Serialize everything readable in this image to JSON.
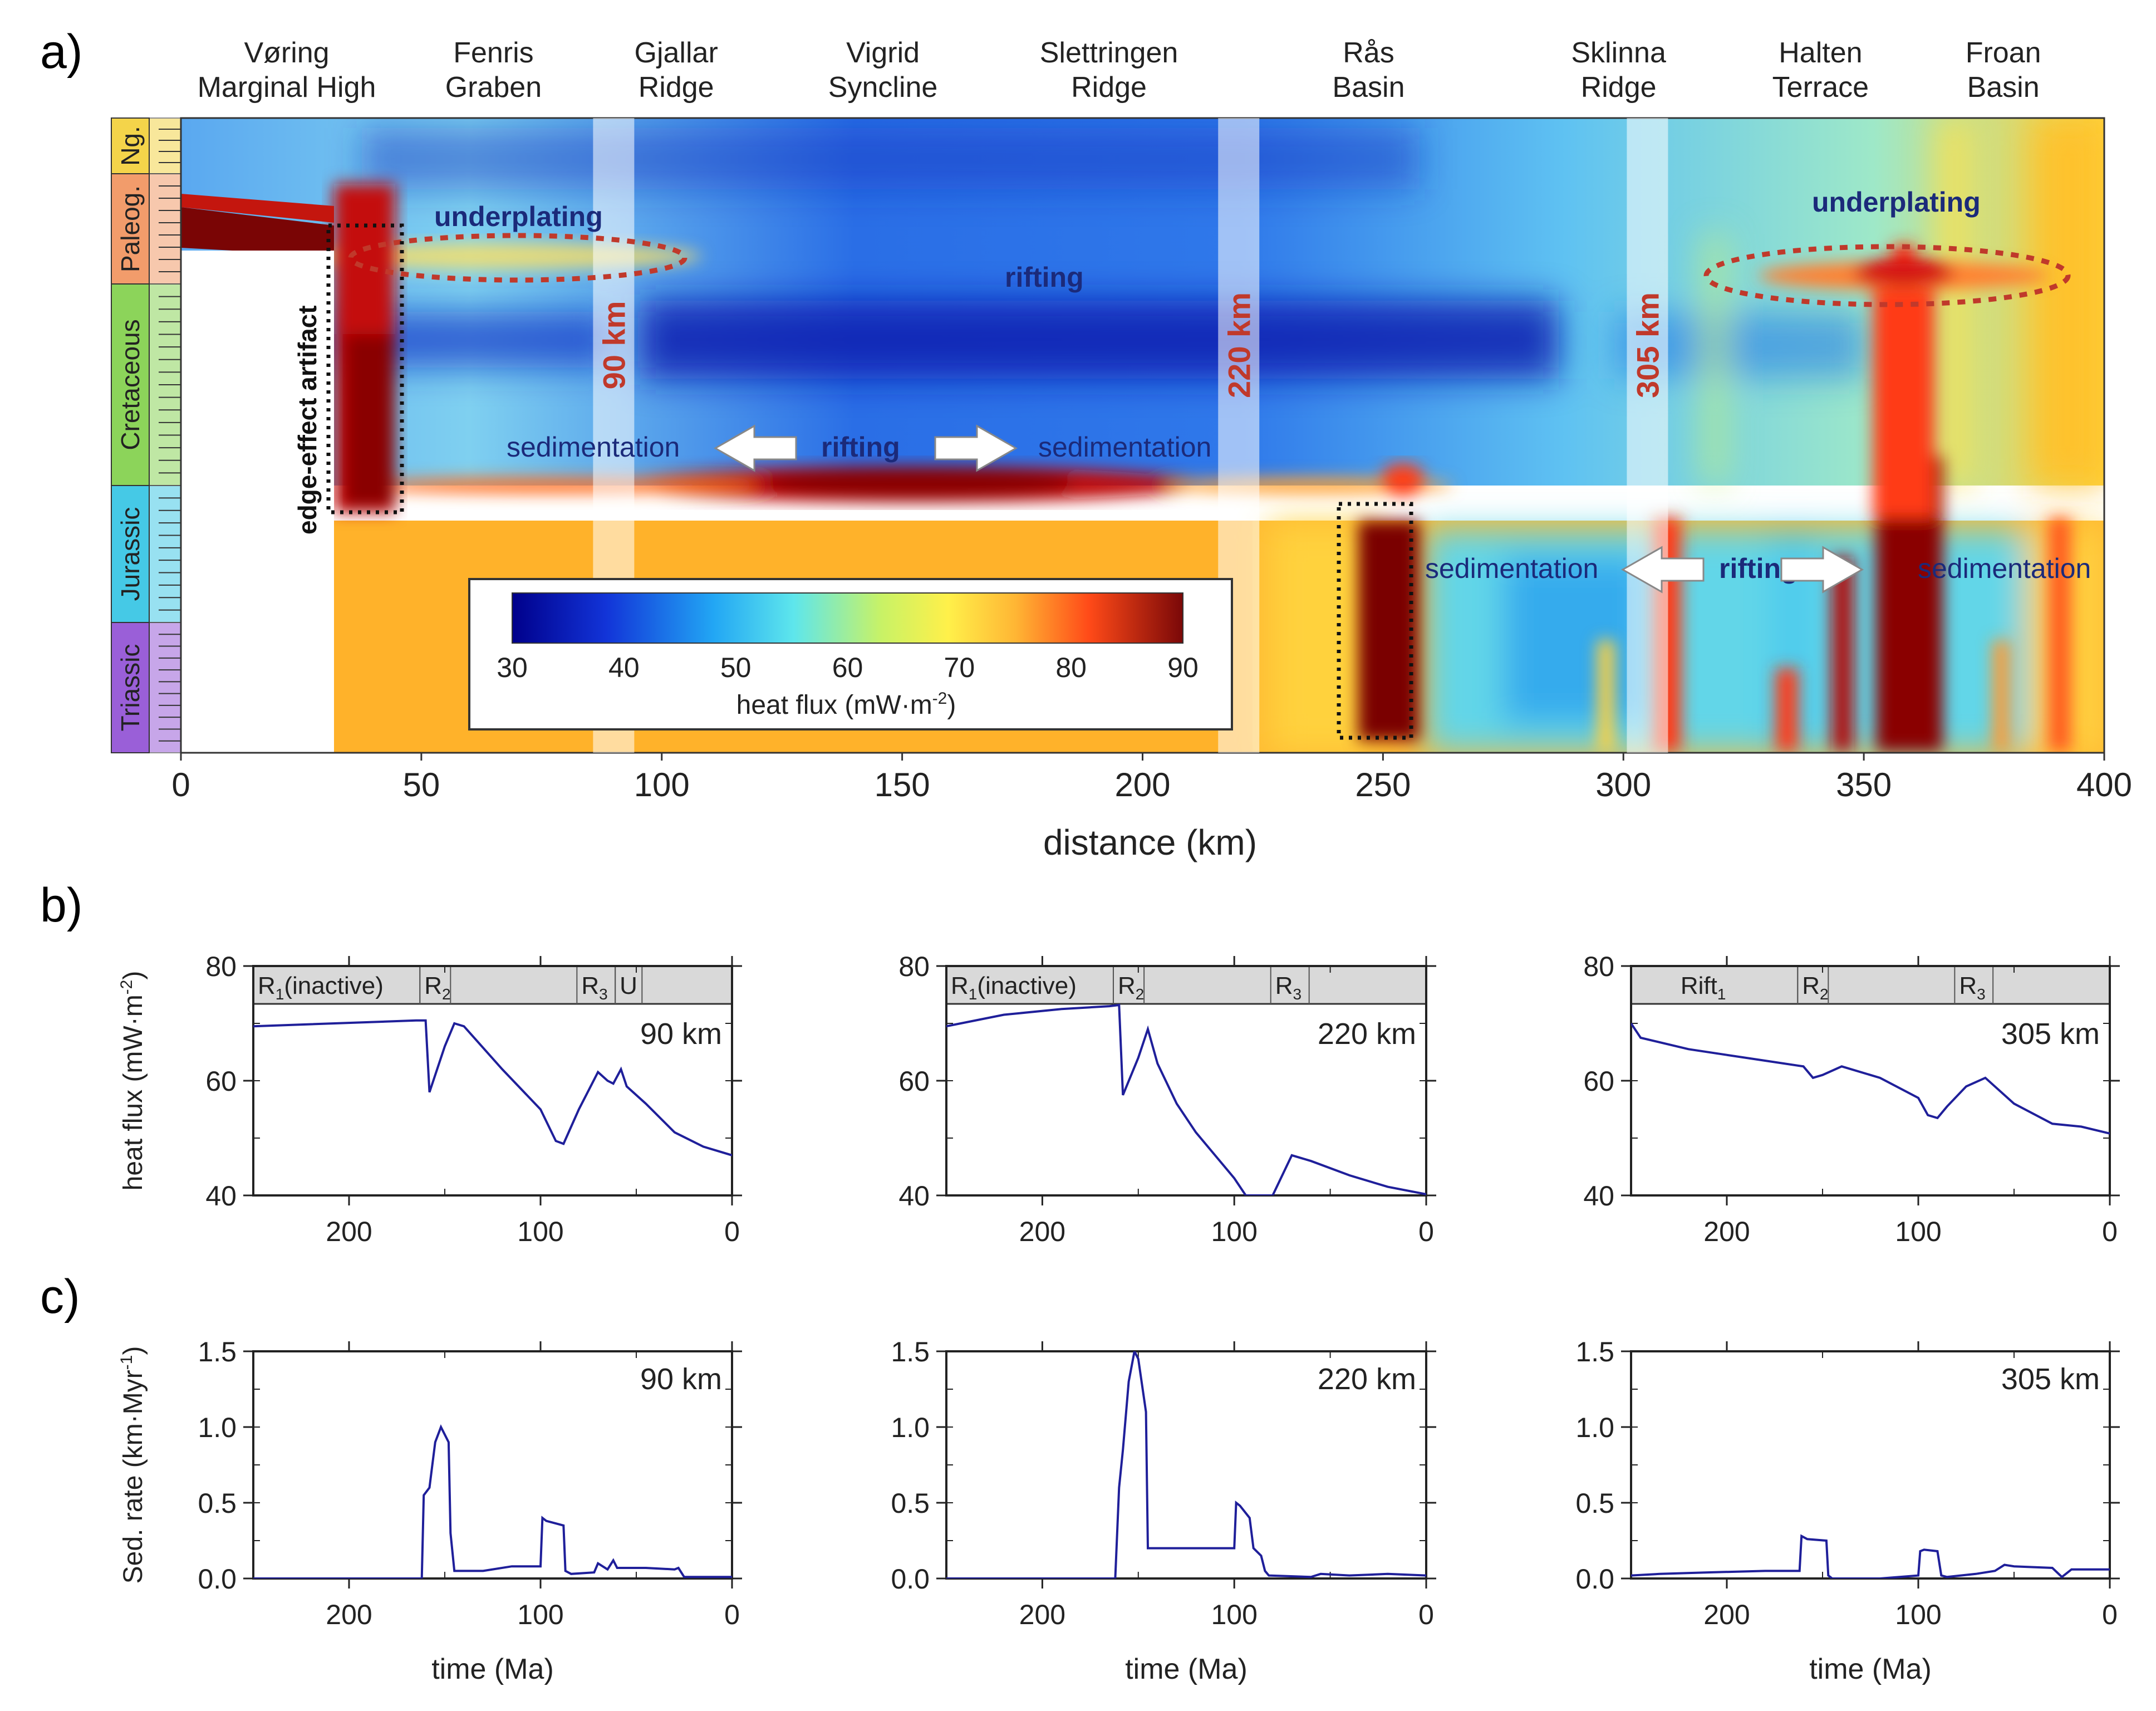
{
  "panel_labels": {
    "a": "a)",
    "b": "b)",
    "c": "c)"
  },
  "colors": {
    "line": "#1f1f9a",
    "ellipse": "#c0392b",
    "km_label": "#c0392b",
    "bar_fill": "#d9d9d9",
    "ng": "#f4d44a",
    "paleog": "#f29c6b",
    "cretaceous": "#8cd45a",
    "jurassic": "#45c9e6",
    "triassic": "#9a5fd8"
  },
  "chart_data": [
    {
      "id": "a",
      "type": "heatmap",
      "xlabel": "distance (km)",
      "xlim": [
        0,
        400
      ],
      "xticks": [
        0,
        50,
        100,
        150,
        200,
        250,
        300,
        350,
        400
      ],
      "time_scale": [
        {
          "label": "Ng.",
          "color": "#f4d44a"
        },
        {
          "label": "Paleog.",
          "color": "#f29c6b"
        },
        {
          "label": "Cretaceous",
          "color": "#8cd45a"
        },
        {
          "label": "Jurassic",
          "color": "#45c9e6"
        },
        {
          "label": "Triassic",
          "color": "#9a5fd8"
        }
      ],
      "regions": [
        {
          "x": 22,
          "lines": [
            "Vøring",
            "Marginal High"
          ]
        },
        {
          "x": 65,
          "lines": [
            "Fenris",
            "Graben"
          ]
        },
        {
          "x": 103,
          "lines": [
            "Gjallar",
            "Ridge"
          ]
        },
        {
          "x": 146,
          "lines": [
            "Vigrid",
            "Syncline"
          ]
        },
        {
          "x": 193,
          "lines": [
            "Slettringen",
            "Ridge"
          ]
        },
        {
          "x": 247,
          "lines": [
            "Rås",
            "Basin"
          ]
        },
        {
          "x": 299,
          "lines": [
            "Sklinna",
            "Ridge"
          ]
        },
        {
          "x": 341,
          "lines": [
            "Halten",
            "Terrace"
          ]
        },
        {
          "x": 379,
          "lines": [
            "Froan",
            "Basin"
          ]
        }
      ],
      "profiles": [
        {
          "x": 90,
          "label": "90 km"
        },
        {
          "x": 220,
          "label": "220 km"
        },
        {
          "x": 305,
          "label": "305 km"
        }
      ],
      "annotations": {
        "underplating_left": "underplating",
        "underplating_right": "underplating",
        "rifting_top": "rifting",
        "rifting_mid": "rifting",
        "rifting_right": "rifting",
        "sed_left": "sedimentation",
        "sed_mid": "sedimentation",
        "sed_right1": "sedimentation",
        "sed_right2": "sedimentation",
        "edge": "edge-effect artifact"
      },
      "colorbar": {
        "label": "heat flux (mW·m",
        "label_sup": "-2",
        "label_end": ")",
        "ticks": [
          30,
          40,
          50,
          60,
          70,
          80,
          90
        ],
        "range": [
          30,
          90
        ]
      }
    },
    {
      "id": "b-90",
      "type": "line",
      "title": "90 km",
      "ylabel": "heat flux (mW·m",
      "ylabel_sup": "-2",
      "ylabel_end": ")",
      "xlim": [
        250,
        0
      ],
      "ylim": [
        40,
        80
      ],
      "xticks": [
        200,
        100,
        0
      ],
      "yticks": [
        40,
        60,
        80
      ],
      "phases": [
        {
          "start": 250,
          "end": 163,
          "label": "R",
          "sub": "1",
          "suffix": "(inactive)"
        },
        {
          "start": 163,
          "end": 147,
          "label": "R",
          "sub": "2",
          "suffix": ""
        },
        {
          "start": 81,
          "end": 61,
          "label": "R",
          "sub": "3",
          "suffix": ""
        },
        {
          "start": 61,
          "end": 47,
          "label": "U",
          "sub": "",
          "suffix": ""
        }
      ],
      "x": [
        250,
        165,
        160,
        158,
        150,
        145,
        140,
        120,
        100,
        92,
        88,
        80,
        70,
        65,
        62,
        58,
        55,
        45,
        30,
        15,
        0
      ],
      "y": [
        69.5,
        70.5,
        70.5,
        58,
        66,
        70,
        69.5,
        62,
        55,
        49.5,
        49,
        55,
        61.5,
        60,
        59.5,
        62,
        59,
        56,
        51,
        48.5,
        47
      ]
    },
    {
      "id": "b-220",
      "type": "line",
      "title": "220 km",
      "xlim": [
        250,
        0
      ],
      "ylim": [
        40,
        80
      ],
      "xticks": [
        200,
        100,
        0
      ],
      "yticks": [
        40,
        60,
        80
      ],
      "phases": [
        {
          "start": 250,
          "end": 163,
          "label": "R",
          "sub": "1",
          "suffix": "(inactive)"
        },
        {
          "start": 163,
          "end": 147,
          "label": "R",
          "sub": "2",
          "suffix": ""
        },
        {
          "start": 81,
          "end": 61,
          "label": "R",
          "sub": "3",
          "suffix": ""
        }
      ],
      "x": [
        250,
        220,
        190,
        165,
        160,
        158,
        150,
        145,
        140,
        130,
        120,
        110,
        100,
        94,
        80,
        70,
        60,
        40,
        20,
        0
      ],
      "y": [
        69.5,
        71.5,
        72.5,
        73,
        73.2,
        57.5,
        64,
        69,
        63,
        56,
        51,
        47,
        43,
        40,
        40,
        47,
        46,
        43.5,
        41.5,
        40.2
      ]
    },
    {
      "id": "b-305",
      "type": "line",
      "title": "305 km",
      "xlim": [
        250,
        0
      ],
      "ylim": [
        40,
        80
      ],
      "xticks": [
        200,
        100,
        0
      ],
      "yticks": [
        40,
        60,
        80
      ],
      "phases": [
        {
          "start": 250,
          "end": 163,
          "label": "Rift",
          "sub": "1",
          "suffix": ""
        },
        {
          "start": 163,
          "end": 147,
          "label": "R",
          "sub": "2",
          "suffix": ""
        },
        {
          "start": 81,
          "end": 61,
          "label": "R",
          "sub": "3",
          "suffix": ""
        }
      ],
      "x": [
        250,
        245,
        220,
        200,
        180,
        160,
        155,
        150,
        140,
        120,
        100,
        95,
        90,
        85,
        75,
        65,
        60,
        50,
        30,
        15,
        0
      ],
      "y": [
        70,
        67.5,
        65.5,
        64.5,
        63.5,
        62.5,
        60.5,
        61,
        62.5,
        60.5,
        57,
        54,
        53.5,
        55.5,
        59,
        60.5,
        59,
        56,
        52.5,
        52,
        50.8
      ]
    },
    {
      "id": "c-90",
      "type": "line",
      "title": "90 km",
      "ylabel": "Sed. rate (km·Myr",
      "ylabel_sup": "-1",
      "ylabel_end": ")",
      "xlabel": "time (Ma)",
      "xlim": [
        250,
        0
      ],
      "ylim": [
        0,
        1.5
      ],
      "xticks": [
        200,
        100,
        0
      ],
      "yticks": [
        0.0,
        0.5,
        1.0,
        1.5
      ],
      "x": [
        250,
        162,
        161,
        158,
        157,
        155,
        152,
        148,
        147,
        145,
        140,
        130,
        115,
        100,
        99,
        97,
        88,
        87,
        84,
        72,
        70,
        65,
        62,
        60,
        45,
        30,
        28,
        25,
        0
      ],
      "y": [
        0,
        0,
        0.55,
        0.6,
        0.7,
        0.9,
        1.0,
        0.9,
        0.3,
        0.05,
        0.05,
        0.05,
        0.08,
        0.08,
        0.4,
        0.38,
        0.35,
        0.05,
        0.03,
        0.04,
        0.1,
        0.06,
        0.12,
        0.07,
        0.07,
        0.06,
        0.07,
        0.01,
        0.01
      ]
    },
    {
      "id": "c-220",
      "type": "line",
      "title": "220 km",
      "xlabel": "time (Ma)",
      "xlim": [
        250,
        0
      ],
      "ylim": [
        0,
        1.5
      ],
      "xticks": [
        200,
        100,
        0
      ],
      "yticks": [
        0.0,
        0.5,
        1.0,
        1.5
      ],
      "x": [
        250,
        162,
        160,
        158,
        155,
        152,
        150,
        146,
        145,
        142,
        100,
        99,
        97,
        92,
        90,
        86,
        84,
        82,
        60,
        55,
        40,
        20,
        0
      ],
      "y": [
        0,
        0,
        0.6,
        0.85,
        1.3,
        1.5,
        1.45,
        1.1,
        0.2,
        0.2,
        0.2,
        0.5,
        0.48,
        0.4,
        0.2,
        0.15,
        0.05,
        0.02,
        0.01,
        0.03,
        0.02,
        0.03,
        0.02
      ]
    },
    {
      "id": "c-305",
      "type": "line",
      "title": "305 km",
      "xlabel": "time (Ma)",
      "xlim": [
        250,
        0
      ],
      "ylim": [
        0,
        1.5
      ],
      "xticks": [
        200,
        100,
        0
      ],
      "yticks": [
        0.0,
        0.5,
        1.0,
        1.5
      ],
      "x": [
        250,
        235,
        210,
        180,
        162,
        161,
        158,
        148,
        147,
        145,
        120,
        100,
        99,
        97,
        90,
        88,
        85,
        70,
        60,
        55,
        50,
        30,
        25,
        20,
        0
      ],
      "y": [
        0.02,
        0.03,
        0.04,
        0.05,
        0.05,
        0.28,
        0.26,
        0.25,
        0.02,
        0.0,
        0.0,
        0.02,
        0.18,
        0.19,
        0.18,
        0.02,
        0.01,
        0.03,
        0.05,
        0.09,
        0.08,
        0.07,
        0.01,
        0.06,
        0.06
      ]
    }
  ]
}
